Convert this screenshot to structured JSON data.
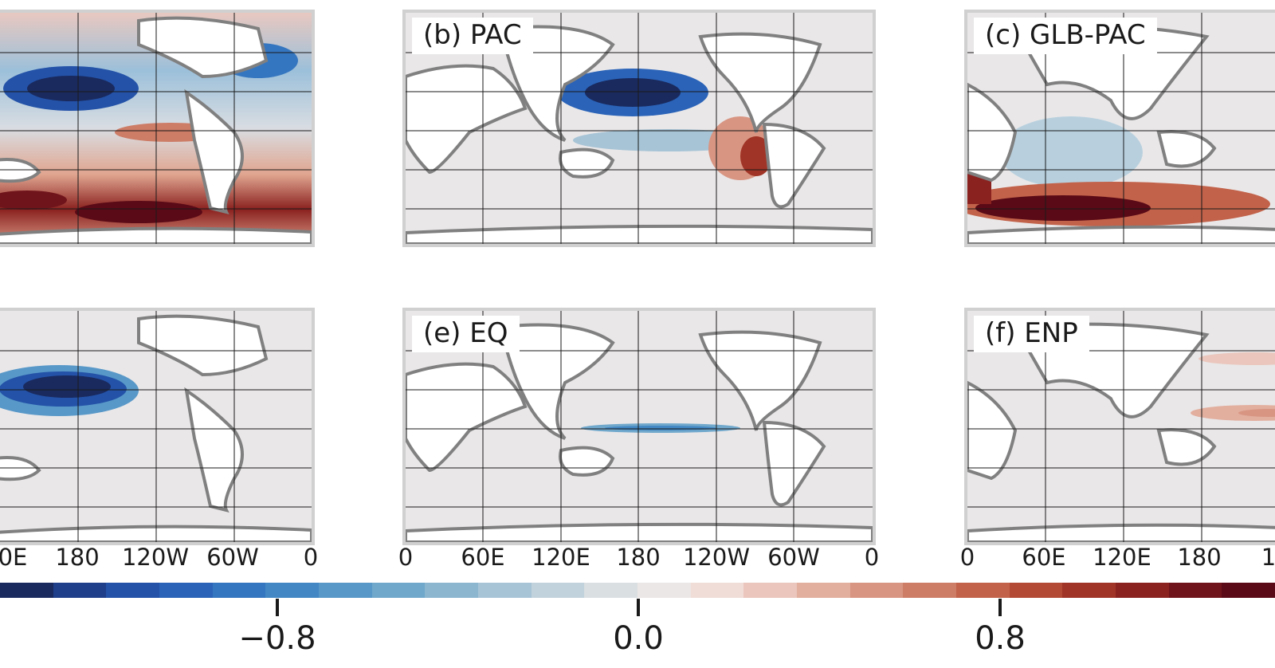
{
  "panels": [
    {
      "label": "",
      "id": "a"
    },
    {
      "label": "(b) PAC",
      "id": "b"
    },
    {
      "label": "(c) GLB-PAC",
      "id": "c"
    },
    {
      "label": "",
      "id": "d"
    },
    {
      "label": "(e) EQ",
      "id": "e"
    },
    {
      "label": "(f) ENP",
      "id": "f"
    }
  ],
  "lon_ticks": {
    "left": [
      "0E",
      "180",
      "120W",
      "60W",
      "0"
    ],
    "middle": [
      "0",
      "60E",
      "120E",
      "180",
      "120W",
      "60W",
      "0"
    ],
    "right": [
      "0",
      "60E",
      "120E",
      "180",
      "1"
    ]
  },
  "colorbar": {
    "tick_labels": [
      "−0.8",
      "0.0",
      "0.8"
    ],
    "colors": [
      "#1a2a5e",
      "#1f3f8a",
      "#2352a8",
      "#2a63b8",
      "#3576c0",
      "#4388c4",
      "#5898c8",
      "#70a8cc",
      "#8cb6d0",
      "#a7c4d6",
      "#c2d2dc",
      "#dadfe2",
      "#ebe7e6",
      "#f0ddd8",
      "#eac6bc",
      "#e2ae9e",
      "#d89582",
      "#cd7c66",
      "#c2624a",
      "#b34a36",
      "#a03426",
      "#8a2220",
      "#70141b",
      "#5a0a16"
    ]
  },
  "colors": {
    "ocean": "#e9e7e8",
    "land": "#ffffff",
    "coast": "#808080",
    "frame": "#d0d0d0"
  }
}
